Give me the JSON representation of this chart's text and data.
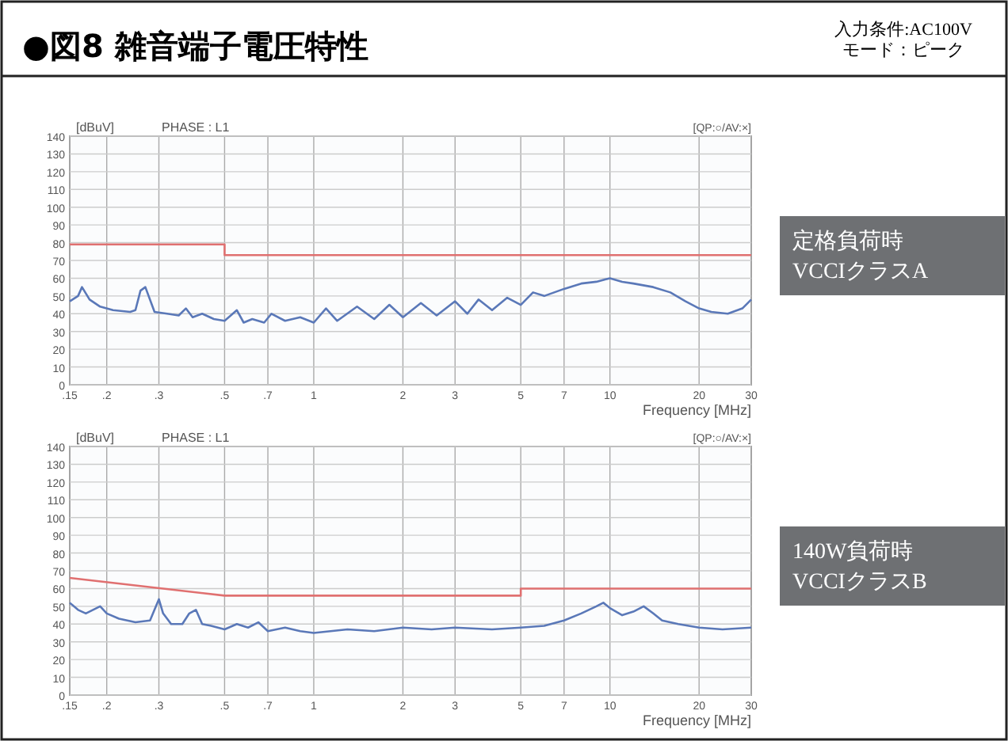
{
  "chart_data": [
    {
      "type": "line",
      "title": "●図8 雑音端子電圧特性",
      "xlabel": "Frequency [MHz]",
      "ylabel": "[dBuV]",
      "log": "x",
      "grid": true,
      "xlim": [
        0.15,
        30
      ],
      "ylim": [
        0,
        140
      ],
      "xticks": [
        {
          "value": 0.15,
          "label": ".15"
        },
        {
          "value": 0.2,
          "label": ".2"
        },
        {
          "value": 0.3,
          "label": ".3"
        },
        {
          "value": 0.5,
          "label": ".5"
        },
        {
          "value": 0.7,
          "label": ".7"
        },
        1,
        2,
        3,
        5,
        7,
        10,
        20,
        30
      ],
      "yticks": [
        0,
        10,
        20,
        30,
        40,
        50,
        60,
        70,
        80,
        90,
        100,
        110,
        120,
        130,
        140
      ],
      "annotations": [
        "入力条件:AC100V",
        "モード：ピーク",
        "PHASE : L1",
        "[QP:○/AV:×]",
        "定格負荷時\nVCCIクラスA"
      ],
      "series": [
        {
          "type": "line",
          "color": "#5a78b8",
          "x": [
            0.15,
            0.16,
            0.165,
            0.175,
            0.19,
            0.21,
            0.24,
            0.25,
            0.26,
            0.27,
            0.29,
            0.32,
            0.35,
            0.37,
            0.39,
            0.42,
            0.46,
            0.5,
            0.55,
            0.58,
            0.62,
            0.68,
            0.72,
            0.8,
            0.9,
            1.0,
            1.1,
            1.2,
            1.4,
            1.6,
            1.8,
            2.0,
            2.3,
            2.6,
            3.0,
            3.3,
            3.6,
            4.0,
            4.5,
            5.0,
            5.5,
            6.0,
            7.0,
            8.0,
            9.0,
            10,
            11,
            12,
            14,
            16,
            18,
            20,
            22,
            25,
            28,
            30
          ],
          "values": [
            47,
            50,
            55,
            48,
            44,
            42,
            41,
            42,
            53,
            55,
            41,
            40,
            39,
            43,
            38,
            40,
            37,
            36,
            42,
            35,
            37,
            35,
            40,
            36,
            38,
            35,
            43,
            36,
            44,
            37,
            45,
            38,
            46,
            39,
            47,
            40,
            48,
            42,
            49,
            45,
            52,
            50,
            54,
            57,
            58,
            60,
            58,
            57,
            55,
            52,
            47,
            43,
            41,
            40,
            43,
            48
          ]
        },
        {
          "type": "line",
          "color": "#e07070",
          "x": [
            0.15,
            0.5,
            0.5,
            30
          ],
          "values": [
            79,
            79,
            73,
            73
          ]
        }
      ]
    },
    {
      "type": "line",
      "xlabel": "Frequency [MHz]",
      "ylabel": "[dBuV]",
      "log": "x",
      "grid": true,
      "xlim": [
        0.15,
        30
      ],
      "ylim": [
        0,
        140
      ],
      "xticks": [
        {
          "value": 0.15,
          "label": ".15"
        },
        {
          "value": 0.2,
          "label": ".2"
        },
        {
          "value": 0.3,
          "label": ".3"
        },
        {
          "value": 0.5,
          "label": ".5"
        },
        {
          "value": 0.7,
          "label": ".7"
        },
        1,
        2,
        3,
        5,
        7,
        10,
        20,
        30
      ],
      "yticks": [
        0,
        10,
        20,
        30,
        40,
        50,
        60,
        70,
        80,
        90,
        100,
        110,
        120,
        130,
        140
      ],
      "annotations": [
        "PHASE : L1",
        "[QP:○/AV:×]",
        "140W負荷時\nVCCIクラスB"
      ],
      "series": [
        {
          "type": "line",
          "color": "#5a78b8",
          "x": [
            0.15,
            0.16,
            0.17,
            0.19,
            0.2,
            0.22,
            0.25,
            0.28,
            0.3,
            0.31,
            0.33,
            0.36,
            0.38,
            0.4,
            0.42,
            0.45,
            0.5,
            0.55,
            0.6,
            0.65,
            0.7,
            0.8,
            0.9,
            1.0,
            1.3,
            1.6,
            2.0,
            2.5,
            3.0,
            4.0,
            5.0,
            6.0,
            7.0,
            8.0,
            9.0,
            9.5,
            10,
            11,
            12,
            13,
            14,
            15,
            17,
            20,
            24,
            30
          ],
          "values": [
            52,
            48,
            46,
            50,
            46,
            43,
            41,
            42,
            54,
            46,
            40,
            40,
            46,
            48,
            40,
            39,
            37,
            40,
            38,
            41,
            36,
            38,
            36,
            35,
            37,
            36,
            38,
            37,
            38,
            37,
            38,
            39,
            42,
            46,
            50,
            52,
            49,
            45,
            47,
            50,
            46,
            42,
            40,
            38,
            37,
            38
          ]
        },
        {
          "type": "line",
          "color": "#e07070",
          "x": [
            0.15,
            0.5,
            5,
            5,
            30
          ],
          "values": [
            66,
            56,
            56,
            60,
            60
          ]
        }
      ]
    }
  ]
}
